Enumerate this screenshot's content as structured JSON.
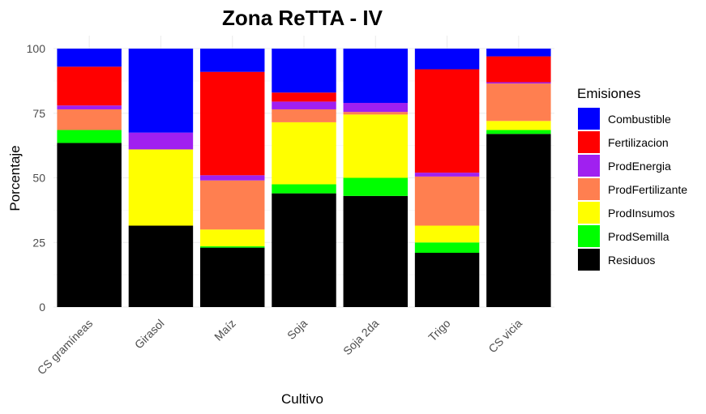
{
  "chart_data": {
    "type": "bar",
    "stacked": true,
    "title": "Zona ReTTA - IV",
    "xlabel": "Cultivo",
    "ylabel": "Porcentaje",
    "ylim": [
      0,
      100
    ],
    "yticks": [
      "0",
      "25",
      "50",
      "75",
      "100"
    ],
    "categories": [
      "CS gramíneas",
      "Girasol",
      "Maíz",
      "Soja",
      "Soja 2da",
      "Trigo",
      "CS vicia"
    ],
    "legend": {
      "title": "Emisiones",
      "position": "right"
    },
    "series": [
      {
        "name": "Residuos",
        "color": "#000000",
        "values": [
          63.5,
          31.5,
          23,
          44,
          43,
          21,
          67
        ]
      },
      {
        "name": "ProdSemilla",
        "color": "#00FF00",
        "values": [
          5,
          0,
          0.5,
          3.5,
          7,
          4,
          1.5
        ]
      },
      {
        "name": "ProdInsumos",
        "color": "#FFFF00",
        "values": [
          0,
          29.5,
          6.5,
          24,
          24.5,
          6.5,
          3.5
        ]
      },
      {
        "name": "ProdFertilizante",
        "color": "#FF7F50",
        "values": [
          8,
          0,
          19,
          5,
          1,
          19,
          14.5
        ]
      },
      {
        "name": "ProdEnergia",
        "color": "#A020F0",
        "values": [
          1.5,
          6.5,
          2,
          3,
          3.5,
          1.5,
          0.5
        ]
      },
      {
        "name": "Fertilizacion",
        "color": "#FF0000",
        "values": [
          15,
          0,
          40,
          3.5,
          0,
          40,
          10
        ]
      },
      {
        "name": "Combustible",
        "color": "#0000FF",
        "values": [
          7,
          32.5,
          9,
          17,
          21,
          8,
          3
        ]
      }
    ],
    "legend_order": [
      "Combustible",
      "Fertilizacion",
      "ProdEnergia",
      "ProdFertilizante",
      "ProdInsumos",
      "ProdSemilla",
      "Residuos"
    ]
  }
}
